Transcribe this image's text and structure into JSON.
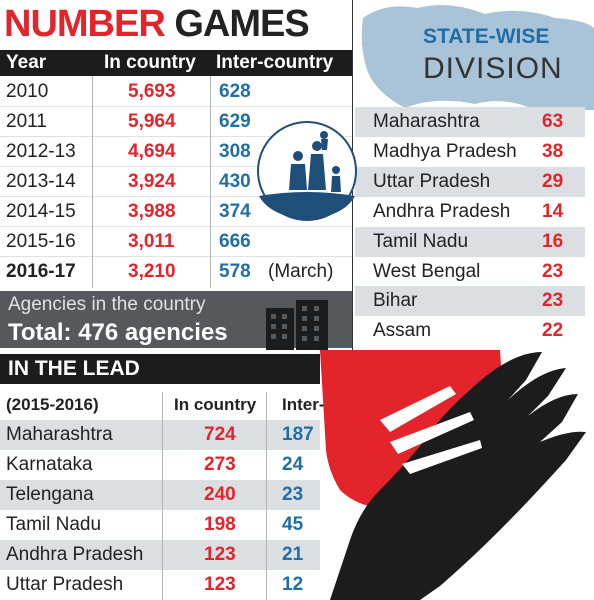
{
  "title": {
    "part1": "NUMBER",
    "part2": "GAMES"
  },
  "adoption_table": {
    "headers": {
      "year": "Year",
      "in_country": "In country",
      "inter_country": "Inter-country"
    },
    "rows": [
      {
        "year": "2010",
        "in_country": "5,693",
        "inter_country": "628",
        "note": ""
      },
      {
        "year": "2011",
        "in_country": "5,964",
        "inter_country": "629",
        "note": ""
      },
      {
        "year": "2012-13",
        "in_country": "4,694",
        "inter_country": "308",
        "note": ""
      },
      {
        "year": "2013-14",
        "in_country": "3,924",
        "inter_country": "430",
        "note": ""
      },
      {
        "year": "2014-15",
        "in_country": "3,988",
        "inter_country": "374",
        "note": ""
      },
      {
        "year": "2015-16",
        "in_country": "3,011",
        "inter_country": "666",
        "note": ""
      },
      {
        "year": "2016-17",
        "in_country": "3,210",
        "inter_country": "578",
        "note": "(March)"
      }
    ]
  },
  "agencies": {
    "label": "Agencies in the country",
    "total": "Total: 476 agencies"
  },
  "lead": {
    "title": "IN THE LEAD",
    "headers": {
      "period": "(2015-2016)",
      "in_country": "In country",
      "inter_country": "Inter-country"
    },
    "rows": [
      {
        "state": "Maharashtra",
        "in_country": "724",
        "inter_country": "187"
      },
      {
        "state": "Karnataka",
        "in_country": "273",
        "inter_country": "24"
      },
      {
        "state": "Telengana",
        "in_country": "240",
        "inter_country": "23"
      },
      {
        "state": "Tamil Nadu",
        "in_country": "198",
        "inter_country": "45"
      },
      {
        "state": "Andhra Pradesh",
        "in_country": "123",
        "inter_country": "21"
      },
      {
        "state": "Uttar Pradesh",
        "in_country": "123",
        "inter_country": "12"
      }
    ]
  },
  "state_wise": {
    "title_line1": "STATE-WISE",
    "title_line2": "DIVISION",
    "rows": [
      {
        "state": "Maharashtra",
        "value": "63"
      },
      {
        "state": "Madhya Pradesh",
        "value": "38"
      },
      {
        "state": "Uttar Pradesh",
        "value": "29"
      },
      {
        "state": "Andhra Pradesh",
        "value": "14"
      },
      {
        "state": "Tamil Nadu",
        "value": "16"
      },
      {
        "state": "West Bengal",
        "value": "23"
      },
      {
        "state": "Bihar",
        "value": "23"
      },
      {
        "state": "Assam",
        "value": "22"
      }
    ]
  },
  "colors": {
    "red": "#e3242b",
    "blue": "#1f6fa6",
    "dark": "#1c1c1c",
    "grey": "#55595c"
  }
}
